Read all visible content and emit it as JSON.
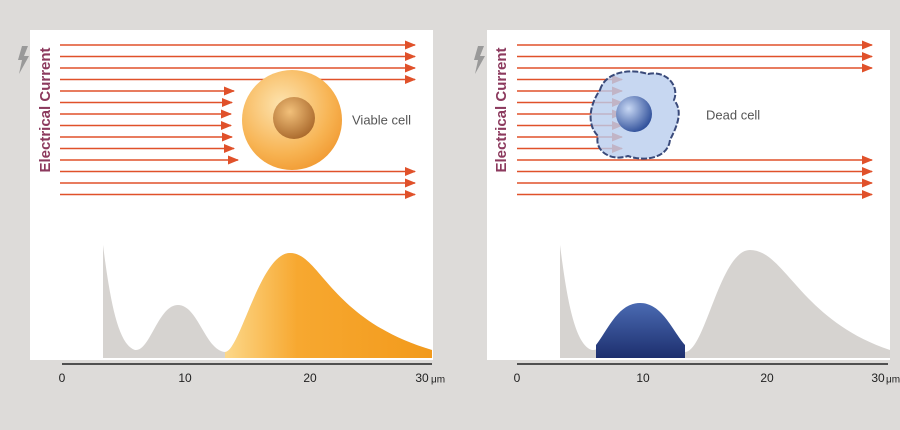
{
  "panels": [
    {
      "axis_label": "Electrical Current",
      "cell_label": "Viable cell",
      "xticks": [
        "0",
        "10",
        "20",
        "30"
      ],
      "unit": "μm"
    },
    {
      "axis_label": "Electrical Current",
      "cell_label": "Dead cell",
      "xticks": [
        "0",
        "10",
        "20",
        "30"
      ],
      "unit": "μm"
    }
  ]
}
